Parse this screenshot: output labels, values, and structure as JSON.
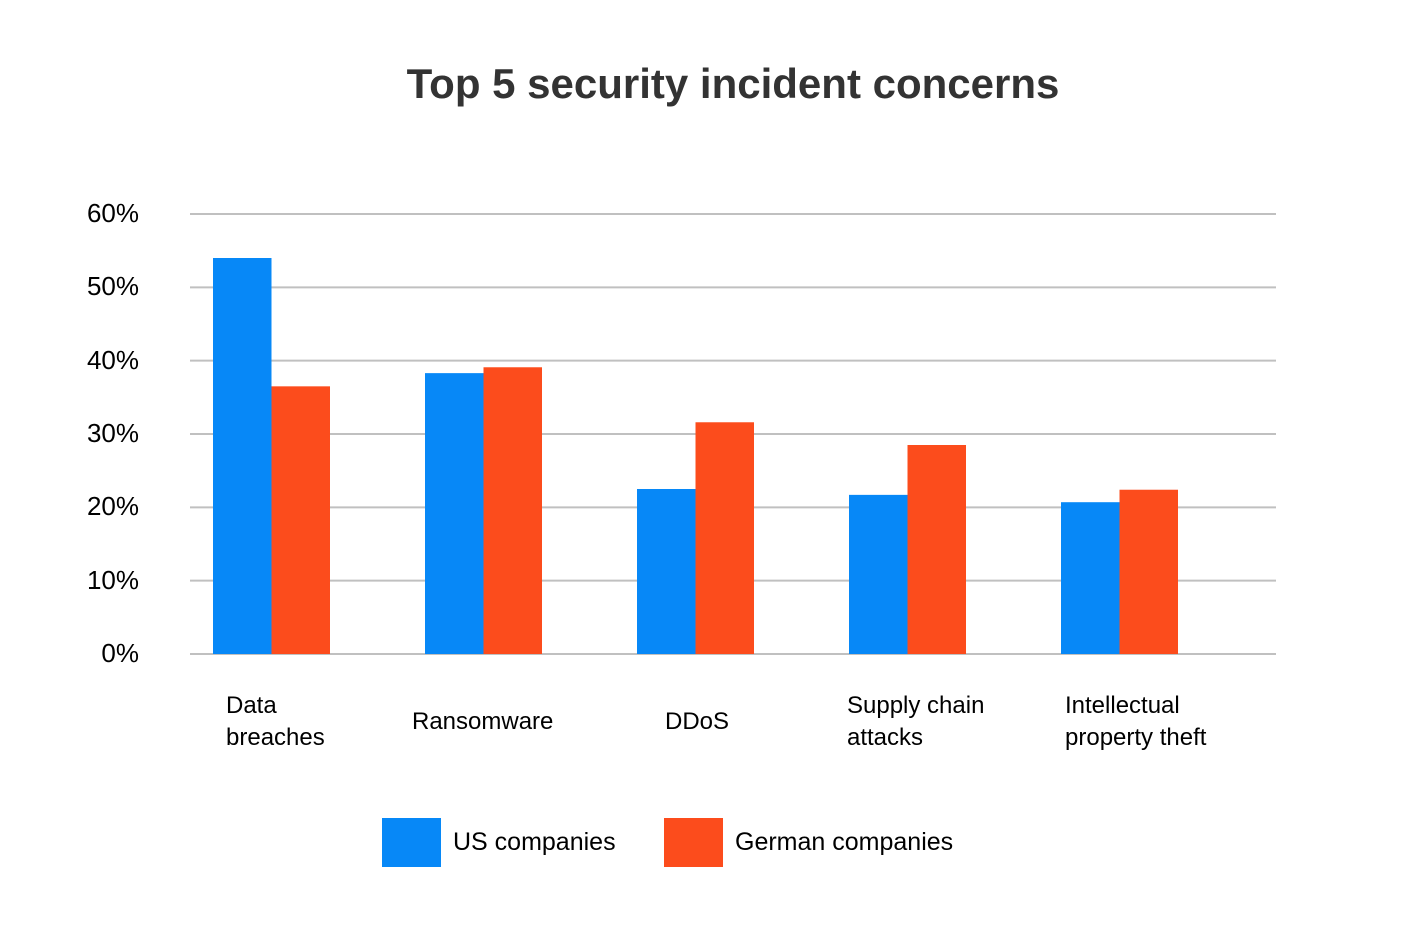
{
  "chart_data": {
    "type": "bar",
    "title": "Top 5 security incident concerns",
    "categories": [
      [
        "Data",
        "breaches"
      ],
      [
        "Ransomware"
      ],
      [
        "DDoS"
      ],
      [
        "Supply chain",
        "attacks"
      ],
      [
        "Intellectual",
        "property theft"
      ]
    ],
    "series": [
      {
        "name": "US companies",
        "color": "#0788f7",
        "values": [
          54.0,
          38.3,
          22.5,
          21.7,
          20.7
        ]
      },
      {
        "name": "German companies",
        "color": "#fc4c1c",
        "values": [
          36.5,
          39.1,
          31.6,
          28.5,
          22.4
        ]
      }
    ],
    "yticks": [
      "0%",
      "10%",
      "20%",
      "30%",
      "40%",
      "50%",
      "60%"
    ],
    "ylim": [
      0,
      60
    ],
    "grid": true,
    "legend": "bottom"
  }
}
